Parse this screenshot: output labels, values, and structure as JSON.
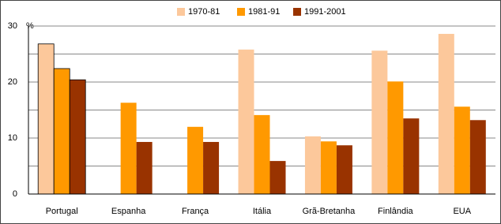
{
  "chart_data": {
    "type": "bar",
    "categories": [
      "Portugal",
      "Espanha",
      "França",
      "Itália",
      "Grã-Bretanha",
      "Finlândia",
      "EUA"
    ],
    "series": [
      {
        "name": "1970-81",
        "color": "#fcc89b",
        "values": [
          26.8,
          null,
          null,
          25.8,
          10.3,
          25.6,
          28.6
        ]
      },
      {
        "name": "1981-91",
        "color": "#ff9900",
        "values": [
          22.4,
          16.3,
          12.0,
          14.1,
          9.4,
          20.1,
          15.6
        ]
      },
      {
        "name": "1991-2001",
        "color": "#993300",
        "values": [
          20.4,
          9.3,
          9.3,
          5.9,
          8.7,
          13.5,
          13.2
        ]
      }
    ],
    "y_unit": "%",
    "ylim": [
      0,
      30
    ],
    "yticks": [
      0,
      10,
      20,
      30
    ],
    "minor_grid": [
      5,
      15,
      25
    ],
    "grid": true
  }
}
